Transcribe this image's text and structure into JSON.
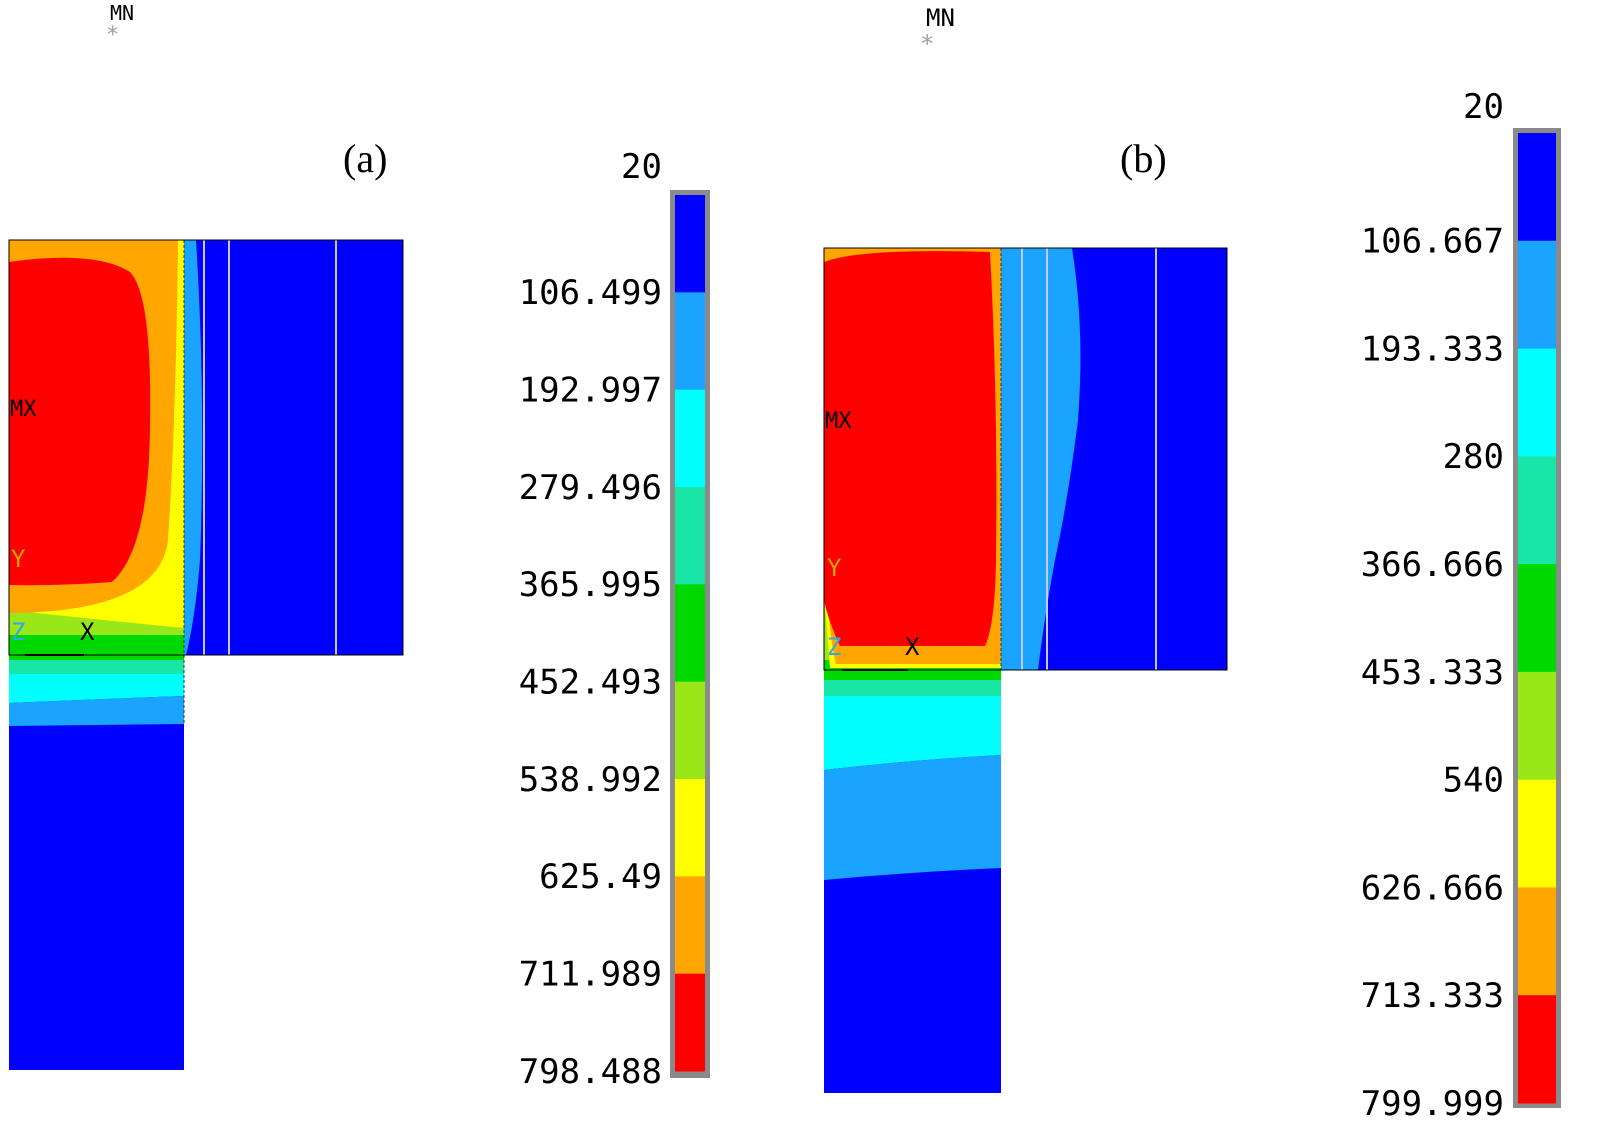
{
  "mn_label": "MN",
  "mx_label": "MX",
  "axis": {
    "x": "X",
    "y": "Y",
    "z": "Z"
  },
  "panels": [
    {
      "label": "(a)",
      "legend_top": "20",
      "legend_values": [
        "106.499",
        "192.997",
        "279.496",
        "365.995",
        "452.493",
        "538.992",
        "625.49",
        "711.989",
        "798.488"
      ]
    },
    {
      "label": "(b)",
      "legend_top": "20",
      "legend_values": [
        "106.667",
        "193.333",
        "280",
        "366.666",
        "453.333",
        "540",
        "626.666",
        "713.333",
        "799.999"
      ]
    }
  ],
  "colors": {
    "band_scale": [
      "#0000ff",
      "#1aa3ff",
      "#00ffff",
      "#19e6a6",
      "#00d900",
      "#99e619",
      "#ffff00",
      "#ffa600",
      "#ff0000"
    ],
    "mn_marker": "#a0a0a0",
    "axis_x": "#000000",
    "axis_y": "#d4a500",
    "axis_z": "#33a8e0"
  }
}
